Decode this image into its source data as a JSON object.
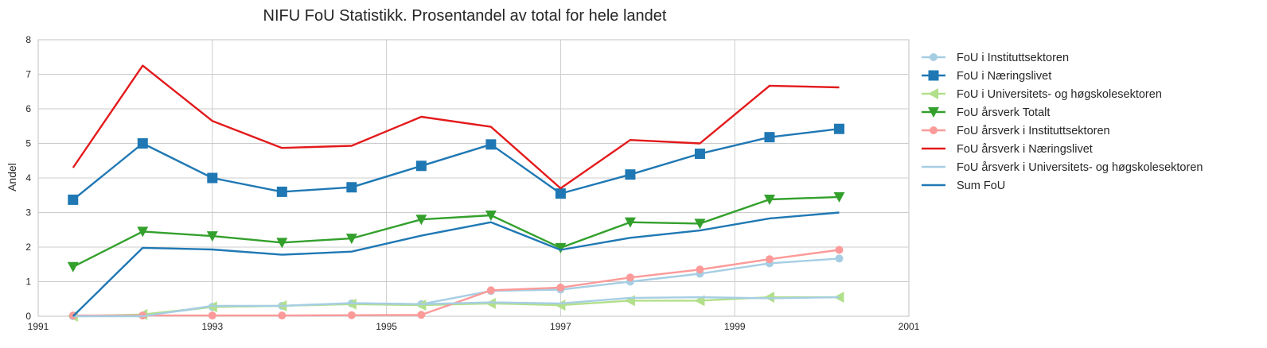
{
  "chart_data": {
    "type": "line",
    "title": "NIFU FoU Statistikk. Prosentandel av total for hele landet",
    "xlabel": "",
    "ylabel": "Andel",
    "xlim": [
      1991,
      2001
    ],
    "ylim": [
      0,
      8
    ],
    "xticks": [
      "1991",
      "1993",
      "1995",
      "1997",
      "1999",
      "2001"
    ],
    "yticks": [
      "0",
      "1",
      "2",
      "3",
      "4",
      "5",
      "6",
      "7",
      "8"
    ],
    "grid": true,
    "legend_position": "outside-right",
    "x": [
      1991.4,
      1992.2,
      1993.0,
      1993.8,
      1994.6,
      1995.4,
      1996.2,
      1997.0,
      1997.8,
      1998.6,
      1999.4,
      2000.2
    ],
    "series": [
      {
        "name": "FoU i Instituttsektoren",
        "color": "#a6cee3",
        "marker": "circle",
        "values": [
          0.0,
          0.02,
          0.27,
          0.3,
          0.37,
          0.35,
          0.73,
          0.77,
          1.0,
          1.23,
          1.53,
          1.67
        ]
      },
      {
        "name": "FoU i Næringslivet",
        "color": "#1f78b4",
        "marker": "square",
        "values": [
          3.37,
          5.0,
          4.0,
          3.6,
          3.73,
          4.35,
          4.97,
          3.55,
          4.1,
          4.7,
          5.18,
          5.42
        ]
      },
      {
        "name": "FoU i Universitets- og høgskolesektoren",
        "color": "#b2df8a",
        "marker": "triangle-left",
        "values": [
          0.0,
          0.05,
          0.27,
          0.3,
          0.35,
          0.32,
          0.37,
          0.32,
          0.45,
          0.45,
          0.55,
          0.55
        ]
      },
      {
        "name": "FoU årsverk Totalt",
        "color": "#33a02c",
        "marker": "triangle-down",
        "values": [
          1.43,
          2.45,
          2.32,
          2.13,
          2.25,
          2.8,
          2.92,
          1.98,
          2.72,
          2.68,
          3.38,
          3.45
        ]
      },
      {
        "name": "FoU årsverk i Instituttsektoren",
        "color": "#fb9a99",
        "marker": "circle",
        "values": [
          0.02,
          0.02,
          0.02,
          0.02,
          0.03,
          0.04,
          0.75,
          0.83,
          1.12,
          1.35,
          1.65,
          1.92
        ]
      },
      {
        "name": "FoU årsverk i Næringslivet",
        "color": "#e31a1c",
        "marker": "none",
        "values": [
          4.3,
          7.25,
          5.65,
          4.87,
          4.93,
          5.77,
          5.48,
          3.7,
          5.1,
          5.0,
          6.67,
          6.62
        ]
      },
      {
        "name": "FoU årsverk i Universitets- og høgskolesektoren",
        "color": "#a6cee3",
        "marker": "none",
        "values": [
          0.0,
          0.0,
          0.3,
          0.3,
          0.38,
          0.35,
          0.4,
          0.37,
          0.53,
          0.55,
          0.52,
          0.55
        ]
      },
      {
        "name": "Sum FoU",
        "color": "#1f78b4",
        "marker": "none",
        "values": [
          0.0,
          1.98,
          1.93,
          1.78,
          1.87,
          2.33,
          2.72,
          1.92,
          2.27,
          2.48,
          2.83,
          3.0
        ]
      }
    ]
  }
}
